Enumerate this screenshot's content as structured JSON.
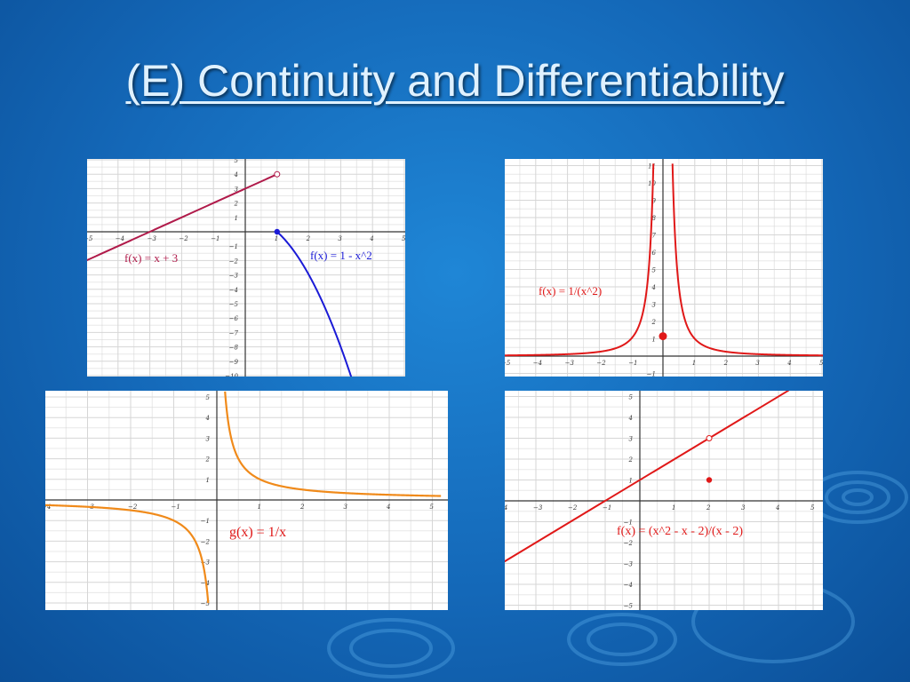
{
  "slide": {
    "title": "(E) Continuity and Differentiability"
  },
  "graphs": [
    {
      "label": "f(x) = x + 3",
      "label2": "f(x) = 1 - x^2",
      "colors": {
        "line": "#b01a4a",
        "curve": "#1a1ad6"
      },
      "xlim": [
        -5,
        5
      ],
      "ylim": [
        -10,
        5
      ]
    },
    {
      "label": "f(x) = 1/(x^2)",
      "colors": {
        "curve": "#e01818"
      },
      "xlim": [
        -5,
        5
      ],
      "ylim": [
        -1,
        10
      ]
    },
    {
      "label": "g(x) = 1/x",
      "colors": {
        "curve": "#f08a1a"
      },
      "xlim": [
        -5,
        5
      ],
      "ylim": [
        -5,
        5
      ]
    },
    {
      "label": "f(x) = (x^2 - x - 2)/(x - 2)",
      "colors": {
        "curve": "#e01818"
      },
      "xlim": [
        -4,
        5
      ],
      "ylim": [
        -5,
        5
      ]
    }
  ]
}
